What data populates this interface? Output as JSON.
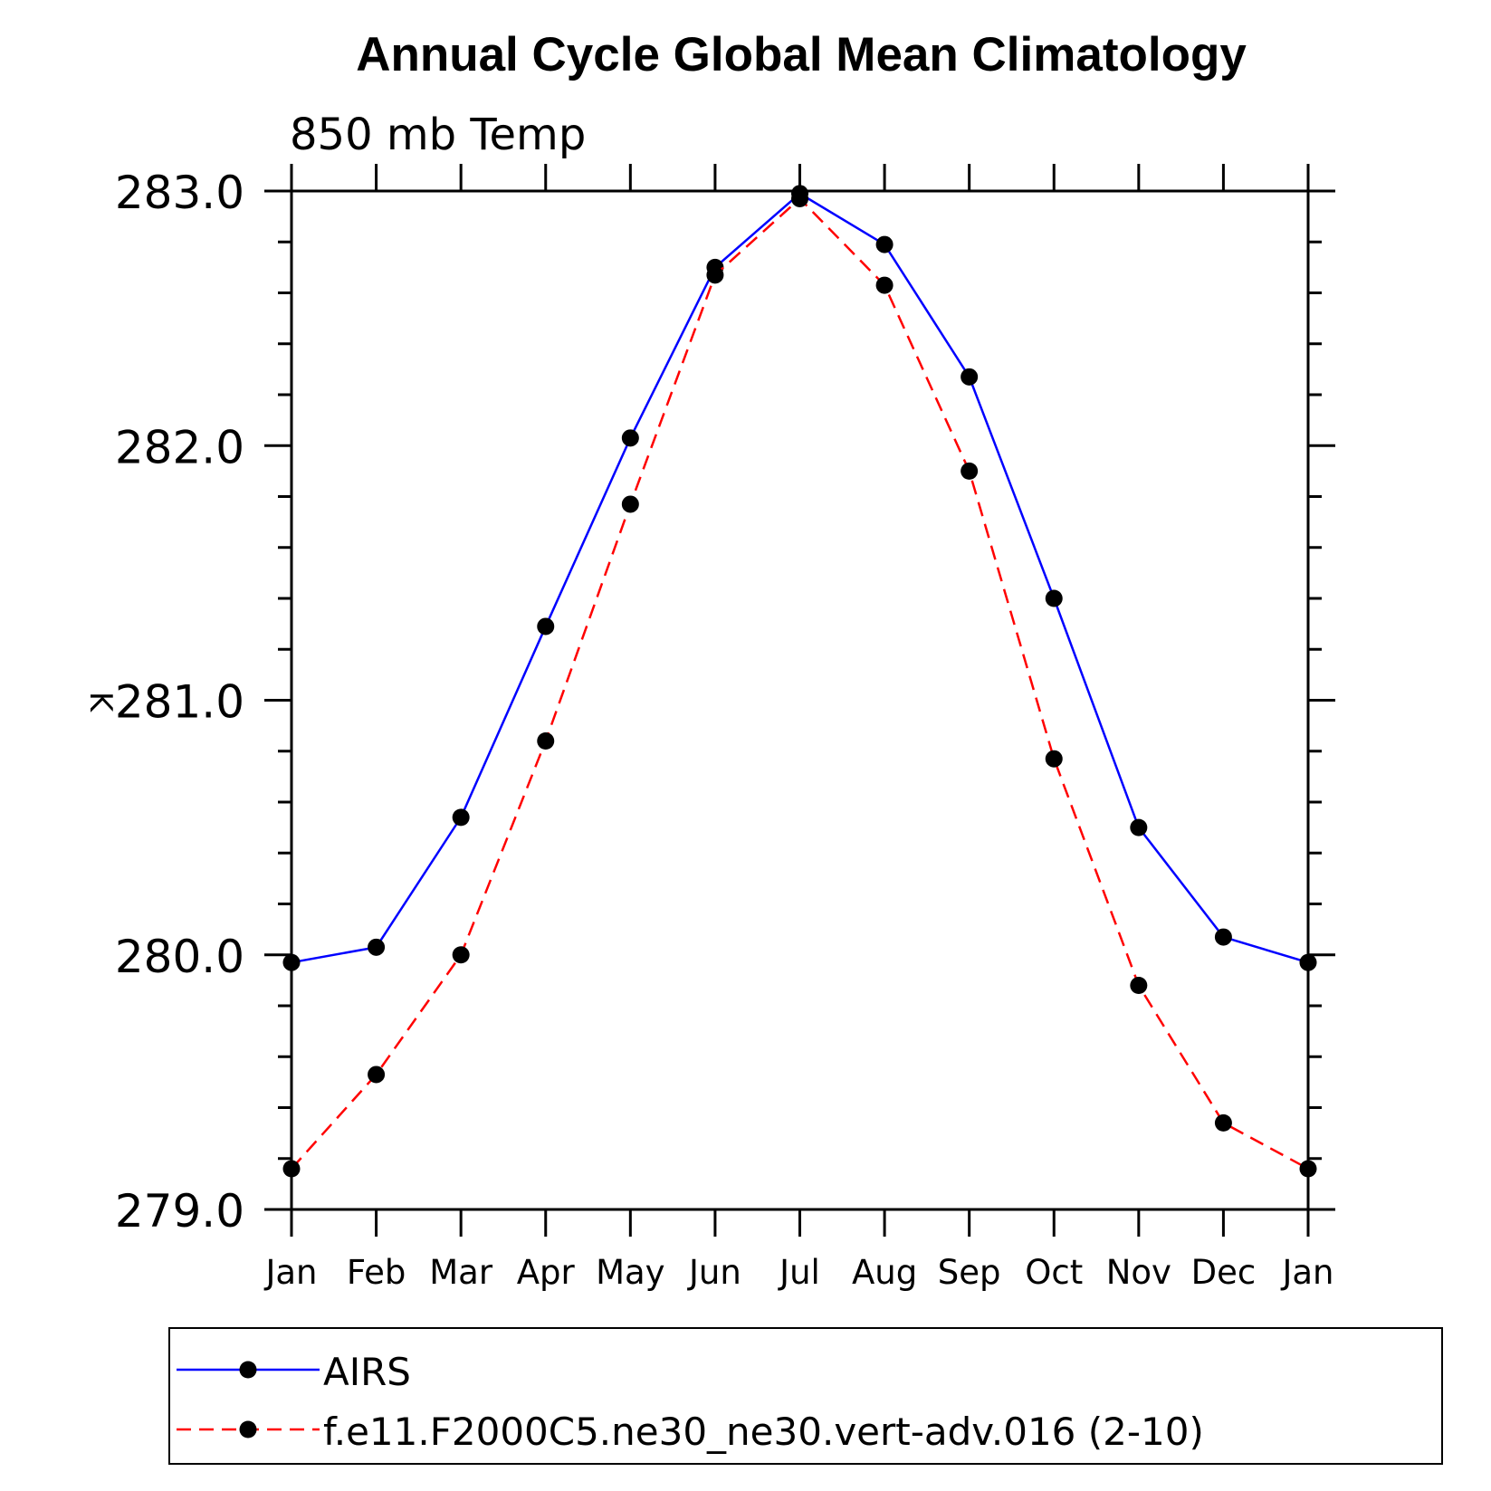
{
  "chart_data": {
    "type": "line",
    "title": "Annual Cycle Global Mean Climatology",
    "subtitle": "850 mb Temp",
    "xlabel": "",
    "ylabel": "K",
    "categories": [
      "Jan",
      "Feb",
      "Mar",
      "Apr",
      "May",
      "Jun",
      "Jul",
      "Aug",
      "Sep",
      "Oct",
      "Nov",
      "Dec",
      "Jan"
    ],
    "ylim": [
      279.0,
      283.0
    ],
    "yticks": [
      "279.0",
      "280.0",
      "281.0",
      "282.0",
      "283.0"
    ],
    "grid": false,
    "legend_position": "bottom",
    "series": [
      {
        "name": "AIRS",
        "color": "#0000ff",
        "line_style": "solid",
        "marker": "filled-circle",
        "values": [
          279.97,
          280.03,
          280.54,
          281.29,
          282.03,
          282.7,
          282.99,
          282.79,
          282.27,
          281.4,
          280.5,
          280.07,
          279.97
        ]
      },
      {
        "name": "f.e11.F2000C5.ne30_ne30.vert-adv.016 (2-10)",
        "color": "#ff0000",
        "line_style": "dashed",
        "marker": "filled-circle",
        "values": [
          279.16,
          279.53,
          280.0,
          280.84,
          281.77,
          282.67,
          282.97,
          282.63,
          281.9,
          280.77,
          279.88,
          279.34,
          279.16
        ]
      }
    ]
  }
}
